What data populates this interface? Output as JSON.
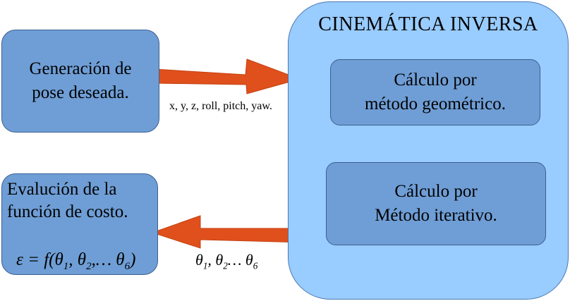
{
  "pose_box": {
    "line1": "Generación de",
    "line2": "pose deseada."
  },
  "pose_arrow_label": "x, y, z, roll, pitch, yaw.",
  "ik_panel": {
    "title": "CINEMÁTICA  INVERSA",
    "geometric": {
      "line1": "Cálculo por",
      "line2": "método geométrico."
    },
    "iterative": {
      "line1": "Cálculo por",
      "line2": "Método iterativo."
    }
  },
  "eval_box": {
    "line1": "Evalución de la",
    "line2": "función de costo.",
    "formula_lhs": "ε = f(θ",
    "sub1": "1",
    "sep1": ", θ",
    "sub2": "2",
    "sep2": ",… θ",
    "sub3": "6",
    "formula_end": ")"
  },
  "theta_label": {
    "t1": "θ",
    "s1": "1",
    "t2": ", θ",
    "s2": "2",
    "t3": "… θ",
    "s3": "6"
  },
  "colors": {
    "box_dark": "#6f9ed6",
    "box_light": "#99ccff",
    "arrow": "#e0501c"
  }
}
